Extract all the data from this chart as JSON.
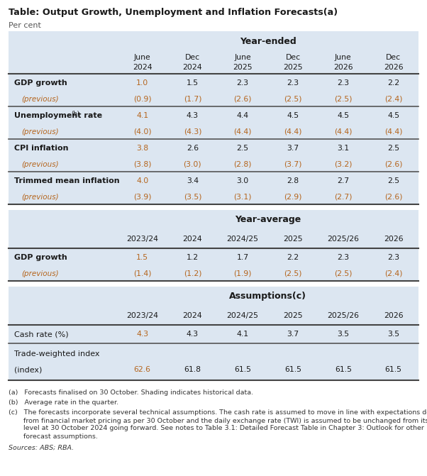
{
  "title": "Table: Output Growth, Unemployment and Inflation Forecasts",
  "title_superscript": "(a)",
  "subtitle": "Per cent",
  "background_color": "#ffffff",
  "header_bg_color": "#dce6f1",
  "shading_color": "#dce6f1",
  "header_text_color": "#1a1a1a",
  "body_text_color": "#1a1a1a",
  "prev_text_color": "#b5651d",
  "footnote_color": "#333333",
  "source_color": "#333333",
  "line_color": "#555555",
  "section1_header": "Year-ended",
  "section1_col_labels": [
    [
      "June",
      "2024"
    ],
    [
      "Dec",
      "2024"
    ],
    [
      "June",
      "2025"
    ],
    [
      "Dec",
      "2025"
    ],
    [
      "June",
      "2026"
    ],
    [
      "Dec",
      "2026"
    ]
  ],
  "section1_rows": [
    {
      "label": "GDP growth",
      "bold": true,
      "values": [
        "1.0",
        "1.5",
        "2.3",
        "2.3",
        "2.3",
        "2.2"
      ],
      "shade": true,
      "superscript": ""
    },
    {
      "label": "(previous)",
      "bold": false,
      "values": [
        "(0.9)",
        "(1.7)",
        "(2.6)",
        "(2.5)",
        "(2.5)",
        "(2.4)"
      ],
      "shade": true,
      "prev": true
    },
    {
      "label": "Unemployment rate",
      "bold": true,
      "values": [
        "4.1",
        "4.3",
        "4.4",
        "4.5",
        "4.5",
        "4.5"
      ],
      "shade": true,
      "superscript": "(b)"
    },
    {
      "label": "(previous)",
      "bold": false,
      "values": [
        "(4.0)",
        "(4.3)",
        "(4.4)",
        "(4.4)",
        "(4.4)",
        "(4.4)"
      ],
      "shade": true,
      "prev": true
    },
    {
      "label": "CPI inflation",
      "bold": true,
      "values": [
        "3.8",
        "2.6",
        "2.5",
        "3.7",
        "3.1",
        "2.5"
      ],
      "shade": true,
      "superscript": ""
    },
    {
      "label": "(previous)",
      "bold": false,
      "values": [
        "(3.8)",
        "(3.0)",
        "(2.8)",
        "(3.7)",
        "(3.2)",
        "(2.6)"
      ],
      "shade": true,
      "prev": true
    },
    {
      "label": "Trimmed mean inflation",
      "bold": true,
      "values": [
        "4.0",
        "3.4",
        "3.0",
        "2.8",
        "2.7",
        "2.5"
      ],
      "shade": true,
      "superscript": ""
    },
    {
      "label": "(previous)",
      "bold": false,
      "values": [
        "(3.9)",
        "(3.5)",
        "(3.1)",
        "(2.9)",
        "(2.7)",
        "(2.6)"
      ],
      "shade": true,
      "prev": true
    }
  ],
  "section2_header": "Year-average",
  "section2_col_labels": [
    "2023/24",
    "2024",
    "2024/25",
    "2025",
    "2025/26",
    "2026"
  ],
  "section2_rows": [
    {
      "label": "GDP growth",
      "bold": true,
      "values": [
        "1.5",
        "1.2",
        "1.7",
        "2.2",
        "2.3",
        "2.3"
      ],
      "shade": true
    },
    {
      "label": "(previous)",
      "bold": false,
      "values": [
        "(1.4)",
        "(1.2)",
        "(1.9)",
        "(2.5)",
        "(2.5)",
        "(2.4)"
      ],
      "shade": true,
      "prev": true
    }
  ],
  "section3_header": "Assumptions",
  "section3_superscript": "(c)",
  "section3_col_labels": [
    "2023/24",
    "2024",
    "2024/25",
    "2025",
    "2025/26",
    "2026"
  ],
  "section3_rows": [
    {
      "label": "Cash rate (%)",
      "bold": false,
      "values": [
        "4.3",
        "4.3",
        "4.1",
        "3.7",
        "3.5",
        "3.5"
      ],
      "shade": true
    },
    {
      "label": "Trade-weighted index\n(index)",
      "bold": false,
      "values": [
        "62.6",
        "61.8",
        "61.5",
        "61.5",
        "61.5",
        "61.5"
      ],
      "shade": true,
      "two_line": true
    }
  ],
  "fn_a": "(a)   Forecasts finalised on 30 October. Shading indicates historical data.",
  "fn_b": "(b)   Average rate in the quarter.",
  "fn_c_line1": "(c)   The forecasts incorporate several technical assumptions. The cash rate is assumed to move in line with expectations derived",
  "fn_c_line2": "       from financial market pricing as per 30 October and the daily exchange rate (TWI) is assumed to be unchanged from its",
  "fn_c_line3": "       level at 30 October 2024 going forward. See notes to Table 3.1: Detailed Forecast Table in Chapter 3: Outlook for other",
  "fn_c_line4": "       forecast assumptions.",
  "source_text": "Sources: ABS; RBA."
}
